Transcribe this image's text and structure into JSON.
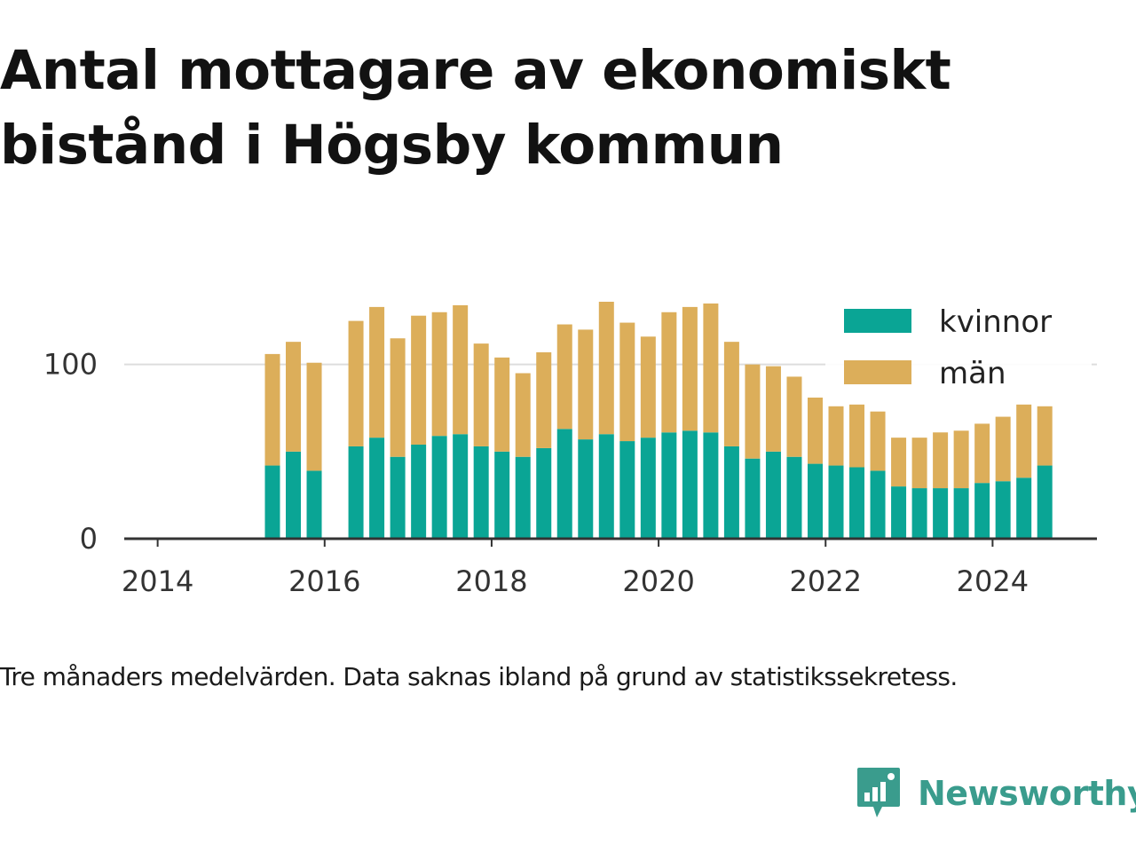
{
  "title_line1": "Antal mottagare av ekonomiskt",
  "title_line2": "bistånd i Högsby kommun",
  "caption": "Tre månaders medelvärden. Data saknas ibland på grund av statistikssekretess.",
  "brand": {
    "name": "Newsworthy",
    "icon": "newsworthy-logo-icon",
    "color": "#3a9c8d"
  },
  "colors": {
    "kvinnor": "#0aa595",
    "man": "#dcae5a",
    "axis": "#333333",
    "grid": "#dddddd"
  },
  "chart_data": {
    "type": "bar",
    "stacked": true,
    "title": "Antal mottagare av ekonomiskt bistånd i Högsby kommun",
    "xlabel": "",
    "ylabel": "",
    "xlim": [
      2013.6,
      2025.25
    ],
    "ylim": [
      0,
      136
    ],
    "x_ticks": [
      2014,
      2016,
      2018,
      2020,
      2022,
      2024
    ],
    "y_ticks": [
      0,
      100
    ],
    "grid": "horizontal",
    "legend_position": "top-right",
    "x": [
      2015.375,
      2015.625,
      2015.875,
      2016.375,
      2016.625,
      2016.875,
      2017.125,
      2017.375,
      2017.625,
      2017.875,
      2018.125,
      2018.375,
      2018.625,
      2018.875,
      2019.125,
      2019.375,
      2019.625,
      2019.875,
      2020.125,
      2020.375,
      2020.625,
      2020.875,
      2021.125,
      2021.375,
      2021.625,
      2021.875,
      2022.125,
      2022.375,
      2022.625,
      2022.875,
      2023.125,
      2023.375,
      2023.625,
      2023.875,
      2024.125,
      2024.375,
      2024.625
    ],
    "series": [
      {
        "name": "kvinnor",
        "values": [
          42,
          50,
          39,
          53,
          58,
          47,
          54,
          59,
          60,
          53,
          50,
          47,
          52,
          63,
          57,
          60,
          56,
          58,
          61,
          62,
          61,
          53,
          46,
          50,
          47,
          43,
          42,
          41,
          39,
          30,
          29,
          29,
          29,
          32,
          33,
          35,
          42
        ]
      },
      {
        "name": "män",
        "values": [
          64,
          63,
          62,
          72,
          75,
          68,
          74,
          71,
          74,
          59,
          54,
          48,
          55,
          60,
          63,
          76,
          68,
          58,
          69,
          71,
          74,
          60,
          54,
          49,
          46,
          38,
          34,
          36,
          34,
          28,
          29,
          32,
          33,
          34,
          37,
          42,
          34
        ]
      }
    ]
  }
}
